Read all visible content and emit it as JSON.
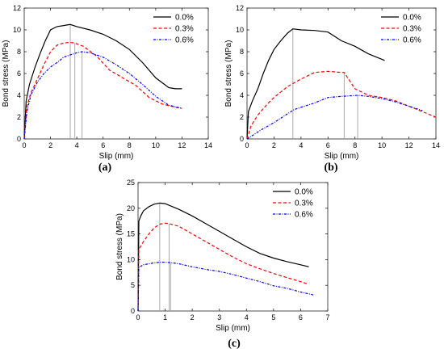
{
  "colors": {
    "s0": "#000000",
    "s1": "#ff0000",
    "s2": "#0000ff",
    "grey": "#a0a0a0",
    "axis": "#222222"
  },
  "chart_data": [
    {
      "panel_label": "(a)",
      "type": "line",
      "xlabel": "Slip (mm)",
      "ylabel": "Bond stress (MPa)",
      "xlim": [
        0,
        14
      ],
      "ylim": [
        0,
        12
      ],
      "xticks": [
        0,
        2,
        4,
        6,
        8,
        10,
        12,
        14
      ],
      "yticks": [
        0,
        2,
        4,
        6,
        8,
        10,
        12
      ],
      "grid": false,
      "legend": "top-right",
      "series": [
        {
          "name": "0.0%",
          "style": "solid",
          "x": [
            0,
            0.15,
            0.4,
            0.8,
            1.2,
            1.6,
            2.0,
            2.5,
            3.0,
            3.5,
            4.0,
            5.0,
            6.0,
            7.0,
            8.0,
            9.0,
            10.0,
            11.0,
            11.5,
            12.0
          ],
          "y": [
            0,
            3.5,
            5.0,
            6.5,
            7.8,
            9.0,
            10.0,
            10.3,
            10.4,
            10.5,
            10.3,
            10.0,
            9.6,
            9.0,
            8.2,
            7.0,
            5.6,
            4.7,
            4.6,
            4.6
          ]
        },
        {
          "name": "0.3%",
          "style": "dashed",
          "x": [
            0,
            0.2,
            0.5,
            1.0,
            1.5,
            2.0,
            2.5,
            3.0,
            3.5,
            3.8,
            4.5,
            5.5,
            6.5,
            7.5,
            8.5,
            9.5,
            10.5,
            11.5,
            12.0
          ],
          "y": [
            0,
            3.0,
            4.2,
            5.5,
            6.8,
            8.0,
            8.6,
            8.8,
            8.85,
            8.8,
            8.5,
            7.6,
            6.3,
            5.6,
            4.9,
            3.8,
            3.2,
            2.9,
            2.8
          ]
        },
        {
          "name": "0.6%",
          "style": "dashdot",
          "x": [
            0,
            0.2,
            0.5,
            1.0,
            1.5,
            2.0,
            2.5,
            3.0,
            3.5,
            4.0,
            4.4,
            5.0,
            6.0,
            7.0,
            8.0,
            9.0,
            10.0,
            11.0,
            12.0
          ],
          "y": [
            0,
            2.5,
            4.0,
            5.2,
            6.0,
            6.6,
            7.0,
            7.5,
            7.7,
            7.9,
            8.0,
            7.9,
            7.5,
            6.8,
            6.0,
            5.0,
            3.9,
            3.1,
            2.8
          ]
        }
      ],
      "markers": [
        {
          "x": 3.5,
          "y": 10.5
        },
        {
          "x": 3.85,
          "y": 8.8
        },
        {
          "x": 4.4,
          "y": 8.0
        }
      ]
    },
    {
      "panel_label": "(b)",
      "type": "line",
      "xlabel": "Slip (mm)",
      "ylabel": "Bond stress (MPa)",
      "xlim": [
        0,
        14
      ],
      "ylim": [
        0,
        12
      ],
      "xticks": [
        0,
        2,
        4,
        6,
        8,
        10,
        12,
        14
      ],
      "yticks": [
        0,
        2,
        4,
        6,
        8,
        10,
        12
      ],
      "grid": false,
      "legend": "top-right",
      "series": [
        {
          "name": "0.0%",
          "style": "solid",
          "x": [
            0,
            0.1,
            0.4,
            0.8,
            1.2,
            1.6,
            2.0,
            2.5,
            3.0,
            3.4,
            4.0,
            5.0,
            6.0,
            7.0,
            8.0,
            9.0,
            10.2
          ],
          "y": [
            0,
            2.5,
            3.5,
            4.6,
            6.0,
            7.2,
            8.2,
            9.0,
            9.7,
            10.1,
            10.0,
            9.95,
            9.8,
            9.0,
            8.5,
            7.8,
            7.2
          ]
        },
        {
          "name": "0.3%",
          "style": "dashed",
          "x": [
            0,
            0.3,
            0.8,
            1.5,
            2.0,
            3.0,
            4.0,
            5.0,
            6.0,
            7.0,
            7.2,
            8.0,
            9.0,
            10.0,
            11.0,
            12.0,
            13.0,
            14.0
          ],
          "y": [
            0,
            1.2,
            2.2,
            3.2,
            3.8,
            4.8,
            5.5,
            6.1,
            6.2,
            6.1,
            6.1,
            4.6,
            4.0,
            3.8,
            3.5,
            3.0,
            2.5,
            2.0
          ]
        },
        {
          "name": "0.6%",
          "style": "dashdot",
          "x": [
            0,
            0.5,
            1.0,
            2.0,
            3.0,
            3.5,
            4.0,
            5.0,
            6.0,
            7.0,
            8.2,
            9.0,
            10.0,
            11.0,
            12.0,
            13.0
          ],
          "y": [
            0,
            0.4,
            0.8,
            1.5,
            2.3,
            2.7,
            2.9,
            3.3,
            3.8,
            3.9,
            4.0,
            3.9,
            3.7,
            3.4,
            3.0,
            2.6
          ]
        }
      ],
      "markers": [
        {
          "x": 3.4,
          "y": 10.1
        },
        {
          "x": 7.2,
          "y": 6.1
        },
        {
          "x": 8.2,
          "y": 4.0
        }
      ]
    },
    {
      "panel_label": "(c)",
      "type": "line",
      "xlabel": "Slip (mm)",
      "ylabel": "Bond stress (MPa)",
      "xlim": [
        0,
        7
      ],
      "ylim": [
        0,
        25
      ],
      "xticks": [
        0,
        1,
        2,
        3,
        4,
        5,
        6,
        7
      ],
      "yticks": [
        0,
        5,
        10,
        15,
        20,
        25
      ],
      "grid": false,
      "legend": "top-right",
      "series": [
        {
          "name": "0.0%",
          "style": "solid",
          "x": [
            0,
            0.03,
            0.1,
            0.2,
            0.4,
            0.6,
            0.8,
            1.0,
            1.5,
            2.0,
            2.5,
            3.0,
            3.5,
            4.0,
            4.5,
            5.0,
            5.5,
            6.0,
            6.3
          ],
          "y": [
            0,
            17.5,
            18.5,
            19.5,
            20.3,
            20.8,
            21.0,
            20.9,
            19.8,
            18.5,
            17.0,
            15.5,
            14.0,
            12.5,
            11.2,
            10.3,
            9.6,
            9.0,
            8.6
          ]
        },
        {
          "name": "0.3%",
          "style": "dashed",
          "x": [
            0,
            0.03,
            0.2,
            0.4,
            0.6,
            0.8,
            1.0,
            1.15,
            1.5,
            2.0,
            2.5,
            3.0,
            3.5,
            4.0,
            4.5,
            5.0,
            5.5,
            6.0,
            6.3
          ],
          "y": [
            0,
            12.0,
            13.5,
            15.0,
            16.2,
            16.9,
            17.1,
            17.0,
            16.5,
            15.0,
            13.5,
            12.0,
            10.5,
            9.2,
            8.2,
            7.3,
            6.5,
            5.7,
            5.2
          ]
        },
        {
          "name": "0.6%",
          "style": "dashdot",
          "x": [
            0,
            0.03,
            0.2,
            0.5,
            0.8,
            1.0,
            1.2,
            1.5,
            2.0,
            2.5,
            3.0,
            3.5,
            4.0,
            4.5,
            5.0,
            5.5,
            6.0,
            6.5
          ],
          "y": [
            0,
            8.5,
            9.0,
            9.3,
            9.5,
            9.5,
            9.4,
            9.2,
            8.6,
            8.1,
            7.7,
            7.1,
            6.4,
            5.7,
            4.9,
            4.4,
            3.7,
            3.1
          ]
        }
      ],
      "markers": [
        {
          "x": 0.8,
          "y": 21.0
        },
        {
          "x": 1.15,
          "y": 17.0
        },
        {
          "x": 1.2,
          "y": 9.4
        }
      ]
    }
  ]
}
